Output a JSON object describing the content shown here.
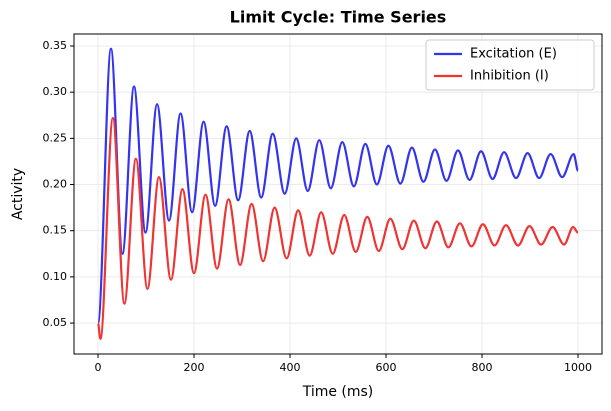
{
  "chart_data": {
    "type": "line",
    "title": "Limit Cycle: Time Series",
    "x_label": "Time (ms)",
    "y_label": "Activity",
    "xlim": [
      -50,
      1050
    ],
    "xticks": [
      0,
      200,
      400,
      600,
      800,
      1000
    ],
    "ylim": [
      0.0165,
      0.363
    ],
    "yticks": [
      0.05,
      {
        "value": 0.1,
        "label": "0.10"
      },
      0.15,
      {
        "value": 0.2,
        "label": "0.20"
      },
      0.25,
      {
        "value": 0.3,
        "label": "0.30"
      },
      0.35
    ],
    "grid": true,
    "legend": "upper right",
    "series": [
      {
        "name": "Excitation (E)",
        "color": "#3333f0",
        "x": [
          0,
          27,
          51,
          75,
          99,
          123,
          148,
          172,
          196,
          220,
          244,
          268,
          292,
          316,
          340,
          364,
          389,
          413,
          437,
          461,
          485,
          509,
          533,
          557,
          581,
          605,
          630,
          654,
          678,
          702,
          726,
          750,
          774,
          798,
          822,
          846,
          871,
          895,
          919,
          943,
          967,
          991,
          1000
        ],
        "values": [
          0.05,
          0.347,
          0.125,
          0.306,
          0.148,
          0.287,
          0.161,
          0.277,
          0.17,
          0.268,
          0.177,
          0.263,
          0.183,
          0.258,
          0.186,
          0.255,
          0.19,
          0.25,
          0.193,
          0.248,
          0.196,
          0.246,
          0.198,
          0.244,
          0.2,
          0.242,
          0.201,
          0.24,
          0.203,
          0.238,
          0.204,
          0.237,
          0.205,
          0.236,
          0.206,
          0.235,
          0.207,
          0.234,
          0.207,
          0.233,
          0.208,
          0.233,
          0.215
        ]
      },
      {
        "name": "Inhibition (I)",
        "color": "#f03333",
        "x": [
          0,
          5,
          31,
          55,
          79,
          103,
          127,
          152,
          176,
          200,
          224,
          248,
          272,
          296,
          320,
          344,
          368,
          393,
          417,
          441,
          465,
          489,
          513,
          537,
          561,
          585,
          609,
          634,
          658,
          682,
          706,
          730,
          754,
          778,
          802,
          826,
          850,
          875,
          899,
          923,
          947,
          971,
          990,
          1000
        ],
        "values": [
          0.05,
          0.033,
          0.272,
          0.071,
          0.228,
          0.087,
          0.208,
          0.097,
          0.195,
          0.104,
          0.189,
          0.109,
          0.184,
          0.113,
          0.179,
          0.117,
          0.175,
          0.12,
          0.172,
          0.123,
          0.17,
          0.125,
          0.167,
          0.127,
          0.165,
          0.128,
          0.163,
          0.13,
          0.161,
          0.131,
          0.16,
          0.132,
          0.158,
          0.133,
          0.157,
          0.134,
          0.156,
          0.134,
          0.155,
          0.135,
          0.154,
          0.135,
          0.154,
          0.148
        ]
      }
    ]
  }
}
